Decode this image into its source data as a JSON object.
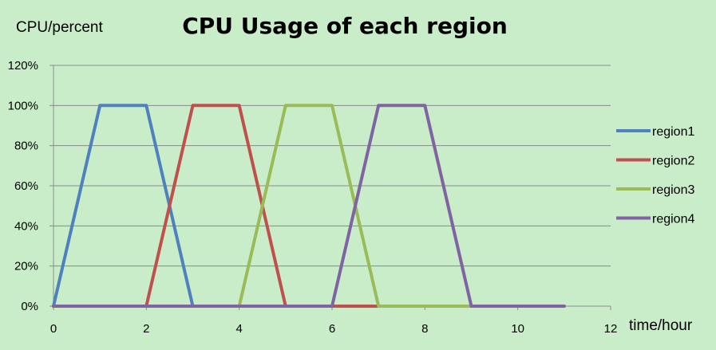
{
  "chart_data": {
    "type": "line",
    "title": "CPU Usage of each region",
    "xlabel": "time/hour",
    "ylabel": "CPU/percent",
    "xlim": [
      0,
      12
    ],
    "ylim": [
      0,
      120
    ],
    "xticks": [
      0,
      2,
      4,
      6,
      8,
      10,
      12
    ],
    "yticks": [
      0,
      20,
      40,
      60,
      80,
      100,
      120
    ],
    "ytick_labels": [
      "0%",
      "20%",
      "40%",
      "60%",
      "80%",
      "100%",
      "120%"
    ],
    "grid": true,
    "legend": "right",
    "x": [
      0,
      1,
      2,
      3,
      4,
      5,
      6,
      7,
      8,
      9,
      10,
      11
    ],
    "series": [
      {
        "name": "region1",
        "color": "#4f81bd",
        "values": [
          0,
          100,
          100,
          0,
          0,
          0,
          0,
          0,
          0,
          0,
          0,
          0
        ]
      },
      {
        "name": "region2",
        "color": "#c0504d",
        "values": [
          0,
          0,
          0,
          100,
          100,
          0,
          0,
          0,
          0,
          0,
          0,
          0
        ]
      },
      {
        "name": "region3",
        "color": "#9bbb59",
        "values": [
          0,
          0,
          0,
          0,
          0,
          100,
          100,
          0,
          0,
          0,
          0,
          0
        ]
      },
      {
        "name": "region4",
        "color": "#8064a2",
        "values": [
          0,
          0,
          0,
          0,
          0,
          0,
          0,
          100,
          100,
          0,
          0,
          0
        ]
      }
    ]
  }
}
